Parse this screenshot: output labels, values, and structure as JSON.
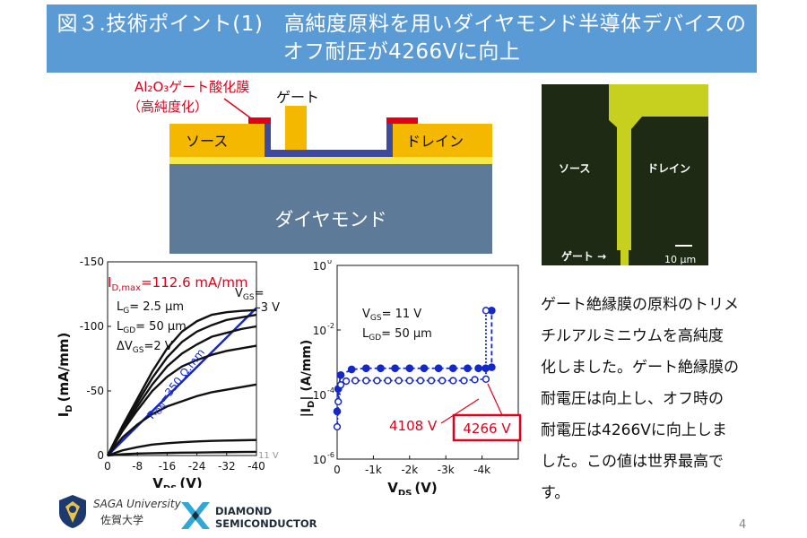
{
  "slide": {
    "title_line1": "図３.技術ポイント(1)　高純度原料を用いダイヤモンド半導体デバイスの",
    "title_line2": "オフ耐圧が4266Vに向上",
    "page_number": "4"
  },
  "colors": {
    "title_bg": "#5b9bd5",
    "diamond": "#5d7a98",
    "electrode": "#f5b800",
    "oxide": "#e0001b",
    "micrograph_bg": "#c7cf1f",
    "curve_blue": "#1428c8",
    "highlight_red": "#e0001b"
  },
  "cross_section": {
    "oxide_label_line1": "Al₂O₃ゲート酸化膜",
    "oxide_label_line2": "（高純度化）",
    "gate_label": "ゲート",
    "source_label": "ソース",
    "drain_label": "ドレイン",
    "substrate_label": "ダイヤモンド"
  },
  "micrograph": {
    "source_label": "ソース",
    "drain_label": "ドレイン",
    "gate_label": "ゲート →",
    "scale_label": "10 μm"
  },
  "iv_chart": {
    "chart_data": {
      "type": "line",
      "xlabel_main": "V",
      "xlabel_sub": "DS",
      "xlabel_unit": "(V)",
      "ylabel_main": "I",
      "ylabel_sub": "D",
      "ylabel_unit": "(mA/mm)",
      "xlim": [
        0,
        -40
      ],
      "ylim": [
        0,
        -150
      ],
      "x_ticks": [
        "0",
        "-8",
        "-16",
        "-24",
        "-32",
        "-40"
      ],
      "y_ticks": [
        "0",
        "-50",
        "-100",
        "-150"
      ],
      "x": [
        0,
        -4,
        -8,
        -12,
        -16,
        -20,
        -24,
        -28,
        -32,
        -36,
        -40
      ],
      "series": [
        {
          "values": [
            0,
            -1,
            -1.5,
            -1.8,
            -2,
            -2.2,
            -2.3,
            -2.5,
            -2.6,
            -2.7,
            -2.8
          ]
        },
        {
          "values": [
            0,
            -4,
            -6.5,
            -8.5,
            -9.5,
            -10.3,
            -10.9,
            -11.3,
            -11.6,
            -11.8,
            -12
          ]
        },
        {
          "values": [
            0,
            -14,
            -24,
            -32,
            -38,
            -42,
            -46,
            -49,
            -51,
            -53,
            -55
          ]
        },
        {
          "values": [
            0,
            -19,
            -35,
            -50,
            -61,
            -69,
            -74,
            -78,
            -81,
            -83,
            -85
          ]
        },
        {
          "values": [
            0,
            -20,
            -38,
            -55,
            -69,
            -79,
            -86,
            -92,
            -95,
            -98,
            -100
          ]
        },
        {
          "values": [
            0,
            -22,
            -41,
            -60,
            -76,
            -88,
            -96,
            -101,
            -105,
            -107,
            -109
          ]
        },
        {
          "values": [
            0,
            -23,
            -44,
            -65,
            -83,
            -96,
            -104,
            -109,
            -111,
            -112,
            -112.6
          ]
        }
      ],
      "ron_line": {
        "label_main": "R",
        "label_sub": "ON",
        "label_value": "=350 Ω.mm",
        "x": [
          0,
          -40
        ],
        "y": [
          0,
          -114.3
        ]
      }
    },
    "annotations": {
      "idmax_main": "I",
      "idmax_sub": "D,max",
      "idmax_value": "=112.6 mA/mm",
      "lg_main": "L",
      "lg_sub": "G",
      "lg_value": "= 2.5 μm",
      "lgd_main": "L",
      "lgd_sub": "GD",
      "lgd_value": "= 50 μm",
      "dvgs_main": "ΔV",
      "dvgs_sub": "GS",
      "dvgs_value": "=2 V",
      "vgs_main": "V",
      "vgs_sub": "GS",
      "vgs_value": "=",
      "vgs_top": "-3 V",
      "vgs_bottom": "11 V"
    }
  },
  "breakdown_chart": {
    "chart_data": {
      "type": "line",
      "yscale": "log",
      "xlabel_main": "V",
      "xlabel_sub": "DS",
      "xlabel_unit": "(V)",
      "ylabel_main": "|I",
      "ylabel_sub": "D",
      "ylabel_unit": "| (A/mm)",
      "xlim": [
        0,
        -5000
      ],
      "ylim": [
        1e-06,
        1
      ],
      "x_ticks": [
        "0",
        "-1k",
        "-2k",
        "-3k",
        "-4k"
      ],
      "y_ticks_base": [
        "10",
        "10",
        "10",
        "10"
      ],
      "y_ticks_exp": [
        "0",
        "-2",
        "-4",
        "-6"
      ],
      "series": [
        {
          "marker": "filled",
          "x": [
            0,
            -30,
            -100,
            -400,
            -800,
            -1200,
            -1600,
            -2000,
            -2400,
            -2800,
            -3200,
            -3600,
            -3900,
            -4100,
            -4266,
            -4266
          ],
          "y": [
            3e-05,
            0.00015,
            0.0004,
            0.0006,
            0.00065,
            0.00065,
            0.00065,
            0.00065,
            0.00065,
            0.00065,
            0.00065,
            0.00065,
            0.00065,
            0.00065,
            0.0007,
            0.04
          ]
        },
        {
          "marker": "open",
          "x": [
            0,
            -30,
            -100,
            -250,
            -500,
            -800,
            -1100,
            -1400,
            -1700,
            -2000,
            -2300,
            -2600,
            -2900,
            -3200,
            -3500,
            -3800,
            -4108,
            -4108
          ],
          "y": [
            1e-05,
            6e-05,
            0.0002,
            0.00026,
            0.00027,
            0.00027,
            0.00027,
            0.00027,
            0.00027,
            0.00027,
            0.00027,
            0.00027,
            0.00027,
            0.00027,
            0.00027,
            0.00029,
            0.0003,
            0.04
          ]
        }
      ]
    },
    "annotations": {
      "vgs_main": "V",
      "vgs_sub": "GS",
      "vgs_value": "= 11 V",
      "lgd_main": "L",
      "lgd_sub": "GD",
      "lgd_value": "= 50 μm",
      "bv_open": "4108 V",
      "bv_filled": "4266 V"
    }
  },
  "description": {
    "lines": [
      "ゲート絶縁膜の原料のトリメ",
      "チルアルミニウムを高純度",
      "化しました。ゲート絶縁膜の",
      "耐電圧は向上し、オフ時の",
      "耐電圧は4266Vに向上しま",
      "した。この値は世界最高で",
      "す。"
    ]
  },
  "logos": {
    "saga_en": "SAGA University",
    "saga_ja": "佐賀大学",
    "ds_line1": "DIAMOND",
    "ds_line2": "SEMICONDUCTOR"
  }
}
